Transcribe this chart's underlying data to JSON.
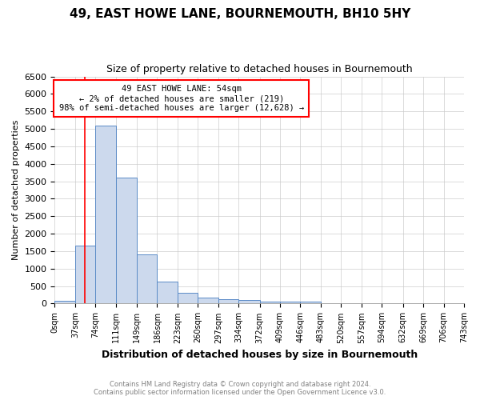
{
  "title": "49, EAST HOWE LANE, BOURNEMOUTH, BH10 5HY",
  "subtitle": "Size of property relative to detached houses in Bournemouth",
  "xlabel": "Distribution of detached houses by size in Bournemouth",
  "ylabel": "Number of detached properties",
  "bin_edges": [
    0,
    37,
    74,
    111,
    149,
    186,
    223,
    260,
    297,
    334,
    372,
    409,
    446,
    483,
    520,
    557,
    594,
    632,
    669,
    706,
    743
  ],
  "bar_heights": [
    75,
    1650,
    5100,
    3600,
    1400,
    620,
    300,
    160,
    130,
    100,
    50,
    50,
    50,
    0,
    0,
    0,
    0,
    0,
    0,
    0
  ],
  "bar_color": "#ccd9ed",
  "bar_edge_color": "#5b8bc7",
  "grid_color": "#cccccc",
  "red_line_x": 54,
  "annotation_text": "49 EAST HOWE LANE: 54sqm\n← 2% of detached houses are smaller (219)\n98% of semi-detached houses are larger (12,628) →",
  "annotation_box_color": "white",
  "annotation_box_edge_color": "red",
  "ylim": [
    0,
    6500
  ],
  "yticks": [
    0,
    500,
    1000,
    1500,
    2000,
    2500,
    3000,
    3500,
    4000,
    4500,
    5000,
    5500,
    6000,
    6500
  ],
  "footnote1": "Contains HM Land Registry data © Crown copyright and database right 2024.",
  "footnote2": "Contains public sector information licensed under the Open Government Licence v3.0.",
  "bg_color": "#ffffff"
}
